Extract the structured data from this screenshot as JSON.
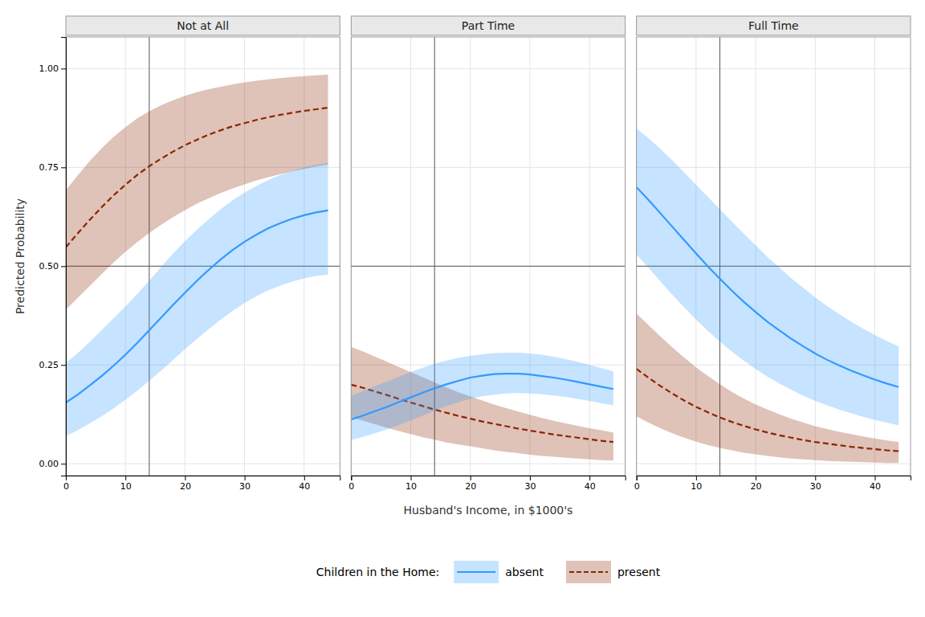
{
  "chart_data": [
    {
      "type": "line",
      "title": "Not at All",
      "y_label": "Predicted Probability",
      "xlim": [
        0,
        46
      ],
      "ylim": [
        -0.03,
        1.08
      ],
      "xticks": [
        0,
        10,
        20,
        30,
        40
      ],
      "yticks": [
        {
          "value": 0,
          "label": "0.00"
        },
        0.25,
        {
          "value": 0.5,
          "label": "0.50"
        },
        0.75,
        {
          "value": 1,
          "label": "1.00"
        }
      ],
      "grid": true,
      "hline": 0.5,
      "vline": 14,
      "x": [
        0,
        2,
        4,
        6,
        8,
        10,
        12,
        14,
        16,
        18,
        20,
        22,
        24,
        26,
        28,
        30,
        32,
        34,
        36,
        38,
        40,
        42,
        44
      ],
      "series": [
        {
          "name": "absent",
          "color": "#3399FF",
          "line_style": "solid",
          "values": [
            0.155,
            0.175,
            0.198,
            0.222,
            0.248,
            0.276,
            0.306,
            0.338,
            0.37,
            0.402,
            0.433,
            0.463,
            0.491,
            0.517,
            0.541,
            0.562,
            0.58,
            0.596,
            0.609,
            0.62,
            0.629,
            0.636,
            0.641
          ],
          "lower": [
            0.07,
            0.085,
            0.102,
            0.12,
            0.14,
            0.162,
            0.185,
            0.21,
            0.236,
            0.263,
            0.29,
            0.316,
            0.341,
            0.365,
            0.387,
            0.407,
            0.424,
            0.439,
            0.451,
            0.461,
            0.469,
            0.475,
            0.479
          ],
          "upper": [
            0.255,
            0.28,
            0.308,
            0.338,
            0.368,
            0.398,
            0.43,
            0.463,
            0.498,
            0.532,
            0.563,
            0.592,
            0.619,
            0.644,
            0.667,
            0.686,
            0.703,
            0.718,
            0.731,
            0.741,
            0.75,
            0.757,
            0.762
          ]
        },
        {
          "name": "present",
          "color": "#8B2500",
          "line_style": "dashed",
          "values": [
            0.548,
            0.583,
            0.617,
            0.649,
            0.679,
            0.706,
            0.731,
            0.753,
            0.772,
            0.79,
            0.806,
            0.82,
            0.833,
            0.844,
            0.854,
            0.862,
            0.87,
            0.877,
            0.883,
            0.888,
            0.893,
            0.897,
            0.901
          ],
          "lower": [
            0.39,
            0.42,
            0.45,
            0.48,
            0.509,
            0.536,
            0.561,
            0.584,
            0.605,
            0.624,
            0.642,
            0.658,
            0.672,
            0.685,
            0.697,
            0.707,
            0.717,
            0.725,
            0.733,
            0.74,
            0.746,
            0.752,
            0.757
          ],
          "upper": [
            0.692,
            0.73,
            0.766,
            0.798,
            0.827,
            0.852,
            0.874,
            0.892,
            0.907,
            0.92,
            0.931,
            0.94,
            0.948,
            0.954,
            0.96,
            0.965,
            0.969,
            0.973,
            0.976,
            0.979,
            0.981,
            0.983,
            0.985
          ]
        }
      ]
    },
    {
      "type": "line",
      "title": "Part Time",
      "x_label": "Husband's Income, in $1000's",
      "legend": "bottom",
      "legend_title": "Children in the Home:",
      "tick_labels": "x",
      "xlim": [
        0,
        46
      ],
      "ylim": [
        -0.03,
        1.08
      ],
      "xticks": [
        0,
        10,
        20,
        30,
        40
      ],
      "yticks": [
        {
          "value": 0,
          "label": "0.00"
        },
        0.25,
        {
          "value": 0.5,
          "label": "0.50"
        },
        0.75,
        {
          "value": 1,
          "label": "1.00"
        }
      ],
      "grid": true,
      "hline": 0.5,
      "vline": 14,
      "x": [
        0,
        2,
        4,
        6,
        8,
        10,
        12,
        14,
        16,
        18,
        20,
        22,
        24,
        26,
        28,
        30,
        32,
        34,
        36,
        38,
        40,
        42,
        44
      ],
      "series": [
        {
          "name": "absent",
          "color": "#3399FF",
          "line_style": "solid",
          "values": [
            0.112,
            0.122,
            0.133,
            0.144,
            0.156,
            0.168,
            0.18,
            0.191,
            0.201,
            0.21,
            0.218,
            0.223,
            0.227,
            0.228,
            0.228,
            0.226,
            0.222,
            0.218,
            0.213,
            0.207,
            0.201,
            0.195,
            0.189
          ],
          "lower": [
            0.06,
            0.068,
            0.077,
            0.087,
            0.098,
            0.11,
            0.122,
            0.134,
            0.146,
            0.156,
            0.164,
            0.171,
            0.175,
            0.178,
            0.179,
            0.178,
            0.176,
            0.173,
            0.169,
            0.164,
            0.159,
            0.153,
            0.148
          ],
          "upper": [
            0.172,
            0.184,
            0.196,
            0.208,
            0.22,
            0.232,
            0.243,
            0.253,
            0.261,
            0.268,
            0.273,
            0.277,
            0.28,
            0.281,
            0.281,
            0.279,
            0.276,
            0.271,
            0.265,
            0.258,
            0.25,
            0.242,
            0.234
          ]
        },
        {
          "name": "present",
          "color": "#8B2500",
          "line_style": "dashed",
          "values": [
            0.2,
            0.192,
            0.183,
            0.174,
            0.164,
            0.155,
            0.146,
            0.137,
            0.129,
            0.121,
            0.114,
            0.107,
            0.101,
            0.095,
            0.089,
            0.084,
            0.079,
            0.074,
            0.07,
            0.066,
            0.062,
            0.058,
            0.055
          ],
          "lower": [
            0.118,
            0.109,
            0.1,
            0.091,
            0.083,
            0.075,
            0.067,
            0.061,
            0.054,
            0.049,
            0.044,
            0.039,
            0.034,
            0.03,
            0.027,
            0.023,
            0.02,
            0.018,
            0.015,
            0.013,
            0.011,
            0.009,
            0.008
          ],
          "upper": [
            0.296,
            0.284,
            0.271,
            0.258,
            0.245,
            0.232,
            0.219,
            0.206,
            0.193,
            0.181,
            0.17,
            0.16,
            0.15,
            0.141,
            0.132,
            0.124,
            0.116,
            0.109,
            0.102,
            0.096,
            0.09,
            0.085,
            0.079
          ]
        }
      ]
    },
    {
      "type": "line",
      "title": "Full Time",
      "tick_labels": "x",
      "xlim": [
        0,
        46
      ],
      "ylim": [
        -0.03,
        1.08
      ],
      "xticks": [
        0,
        10,
        20,
        30,
        40
      ],
      "yticks": [
        {
          "value": 0,
          "label": "0.00"
        },
        0.25,
        {
          "value": 0.5,
          "label": "0.50"
        },
        0.75,
        {
          "value": 1,
          "label": "1.00"
        }
      ],
      "grid": true,
      "hline": 0.5,
      "vline": 14,
      "x": [
        0,
        2,
        4,
        6,
        8,
        10,
        12,
        14,
        16,
        18,
        20,
        22,
        24,
        26,
        28,
        30,
        32,
        34,
        36,
        38,
        40,
        42,
        44
      ],
      "series": [
        {
          "name": "absent",
          "color": "#3399FF",
          "line_style": "solid",
          "values": [
            0.7,
            0.668,
            0.634,
            0.6,
            0.566,
            0.532,
            0.499,
            0.468,
            0.438,
            0.41,
            0.384,
            0.359,
            0.337,
            0.316,
            0.297,
            0.279,
            0.263,
            0.249,
            0.236,
            0.224,
            0.213,
            0.203,
            0.194
          ],
          "lower": [
            0.53,
            0.496,
            0.462,
            0.428,
            0.396,
            0.365,
            0.336,
            0.309,
            0.284,
            0.261,
            0.24,
            0.22,
            0.203,
            0.187,
            0.172,
            0.159,
            0.148,
            0.137,
            0.128,
            0.119,
            0.111,
            0.104,
            0.097
          ],
          "upper": [
            0.848,
            0.824,
            0.797,
            0.768,
            0.737,
            0.706,
            0.675,
            0.644,
            0.613,
            0.582,
            0.553,
            0.523,
            0.496,
            0.469,
            0.445,
            0.421,
            0.399,
            0.379,
            0.36,
            0.342,
            0.326,
            0.311,
            0.297
          ]
        },
        {
          "name": "present",
          "color": "#8B2500",
          "line_style": "dashed",
          "values": [
            0.24,
            0.218,
            0.197,
            0.178,
            0.16,
            0.144,
            0.13,
            0.117,
            0.106,
            0.096,
            0.087,
            0.079,
            0.072,
            0.066,
            0.06,
            0.055,
            0.051,
            0.047,
            0.043,
            0.04,
            0.037,
            0.034,
            0.032
          ],
          "lower": [
            0.12,
            0.104,
            0.09,
            0.077,
            0.066,
            0.056,
            0.047,
            0.04,
            0.034,
            0.028,
            0.024,
            0.02,
            0.016,
            0.013,
            0.011,
            0.009,
            0.007,
            0.006,
            0.005,
            0.004,
            0.003,
            0.002,
            0.002
          ],
          "upper": [
            0.38,
            0.351,
            0.322,
            0.295,
            0.269,
            0.244,
            0.222,
            0.201,
            0.182,
            0.165,
            0.15,
            0.137,
            0.125,
            0.114,
            0.104,
            0.095,
            0.088,
            0.081,
            0.075,
            0.069,
            0.064,
            0.059,
            0.055
          ]
        }
      ]
    }
  ]
}
